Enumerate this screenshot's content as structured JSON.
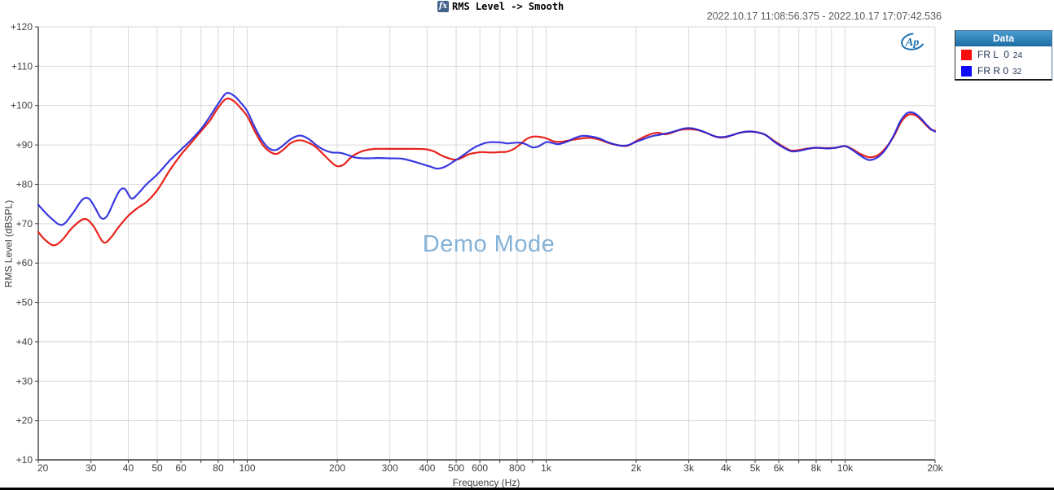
{
  "header": {
    "fx_icon_label": "fx",
    "title": "RMS Level -> Smooth"
  },
  "timestamp": "2022.10.17 11:08:56.375 - 2022.10.17 17:07:42.536",
  "watermark": "Demo Mode",
  "logo": {
    "text": "Ap"
  },
  "legend": {
    "title": "Data",
    "items": [
      {
        "label": "FR L  0",
        "number": "24",
        "color": "#fb0c0c"
      },
      {
        "label": "FR R 0",
        "number": "32",
        "color": "#0c0cfb"
      }
    ]
  },
  "colors": {
    "grid": "#d9d9d9",
    "axis": "#3f3f3f",
    "tick_text": "#3f3f3f",
    "red_trace": "#e8231d",
    "blue_trace": "#2424dd",
    "watermark_blue": "#84b2d8",
    "logo_blue": "#1b6fae",
    "legend_header_blue": "#1b6ca3"
  },
  "chart_data": {
    "type": "line",
    "title": "RMS Level -> Smooth",
    "xlabel": "Frequency (Hz)",
    "ylabel": "RMS Level (dBSPL)",
    "x_scale": "log",
    "x_axis": {
      "label": "Frequency (Hz)",
      "min": 20,
      "max": 20000,
      "gridlines": [
        20,
        30,
        40,
        50,
        60,
        70,
        80,
        90,
        100,
        200,
        300,
        400,
        500,
        600,
        700,
        800,
        900,
        1000,
        2000,
        3000,
        4000,
        5000,
        6000,
        7000,
        8000,
        9000,
        10000,
        20000
      ],
      "ticks": [
        {
          "f": 20,
          "label": "20"
        },
        {
          "f": 30,
          "label": "30"
        },
        {
          "f": 40,
          "label": "40"
        },
        {
          "f": 50,
          "label": "50"
        },
        {
          "f": 60,
          "label": "60"
        },
        {
          "f": 80,
          "label": "80"
        },
        {
          "f": 100,
          "label": "100"
        },
        {
          "f": 200,
          "label": "200"
        },
        {
          "f": 300,
          "label": "300"
        },
        {
          "f": 400,
          "label": "400"
        },
        {
          "f": 500,
          "label": "500"
        },
        {
          "f": 600,
          "label": "600"
        },
        {
          "f": 800,
          "label": "800"
        },
        {
          "f": 1000,
          "label": "1k"
        },
        {
          "f": 2000,
          "label": "2k"
        },
        {
          "f": 3000,
          "label": "3k"
        },
        {
          "f": 4000,
          "label": "4k"
        },
        {
          "f": 5000,
          "label": "5k"
        },
        {
          "f": 6000,
          "label": "6k"
        },
        {
          "f": 8000,
          "label": "8k"
        },
        {
          "f": 10000,
          "label": "10k"
        },
        {
          "f": 20000,
          "label": "20k"
        }
      ]
    },
    "y_axis": {
      "label": "RMS Level (dBSPL)",
      "min": 10,
      "max": 120,
      "step": 10,
      "ticks": [
        {
          "v": 10,
          "label": "+10"
        },
        {
          "v": 20,
          "label": "+20"
        },
        {
          "v": 30,
          "label": "+30"
        },
        {
          "v": 40,
          "label": "+40"
        },
        {
          "v": 50,
          "label": "+50"
        },
        {
          "v": 60,
          "label": "+60"
        },
        {
          "v": 70,
          "label": "+70"
        },
        {
          "v": 80,
          "label": "+80"
        },
        {
          "v": 90,
          "label": "+90"
        },
        {
          "v": 100,
          "label": "+100"
        },
        {
          "v": 110,
          "label": "+110"
        },
        {
          "v": 120,
          "label": "+120"
        }
      ]
    },
    "legend_position": "top-right",
    "grid": true,
    "series": [
      {
        "name": "FR L 0 24",
        "color": "#e8231d",
        "points": [
          [
            20,
            67.9
          ],
          [
            21,
            66.0
          ],
          [
            22.5,
            64.5
          ],
          [
            24,
            65.8
          ],
          [
            26,
            69.0
          ],
          [
            28.5,
            71.2
          ],
          [
            30.5,
            69.5
          ],
          [
            33,
            65.3
          ],
          [
            35,
            66.5
          ],
          [
            37,
            69.0
          ],
          [
            40,
            72.0
          ],
          [
            43,
            74.0
          ],
          [
            46,
            75.5
          ],
          [
            50,
            78.5
          ],
          [
            55,
            83.5
          ],
          [
            60,
            87.5
          ],
          [
            64,
            90.0
          ],
          [
            70,
            93.5
          ],
          [
            75,
            96.2
          ],
          [
            80,
            99.5
          ],
          [
            85,
            101.7
          ],
          [
            90,
            101.2
          ],
          [
            95,
            99.4
          ],
          [
            100,
            97.3
          ],
          [
            106,
            93.5
          ],
          [
            112,
            90.3
          ],
          [
            118,
            88.5
          ],
          [
            125,
            87.7
          ],
          [
            132,
            88.8
          ],
          [
            140,
            90.5
          ],
          [
            150,
            91.2
          ],
          [
            160,
            90.6
          ],
          [
            170,
            89.4
          ],
          [
            182,
            87.2
          ],
          [
            192,
            85.5
          ],
          [
            200,
            84.6
          ],
          [
            210,
            85.0
          ],
          [
            222,
            86.8
          ],
          [
            235,
            88.0
          ],
          [
            250,
            88.7
          ],
          [
            270,
            89.0
          ],
          [
            300,
            89.0
          ],
          [
            330,
            89.0
          ],
          [
            360,
            89.0
          ],
          [
            395,
            88.9
          ],
          [
            420,
            88.4
          ],
          [
            445,
            87.4
          ],
          [
            465,
            86.8
          ],
          [
            490,
            86.3
          ],
          [
            510,
            86.4
          ],
          [
            530,
            87.0
          ],
          [
            555,
            87.7
          ],
          [
            580,
            88.0
          ],
          [
            610,
            88.2
          ],
          [
            640,
            88.1
          ],
          [
            670,
            88.1
          ],
          [
            700,
            88.2
          ],
          [
            740,
            88.3
          ],
          [
            780,
            89.0
          ],
          [
            820,
            90.2
          ],
          [
            860,
            91.5
          ],
          [
            900,
            92.1
          ],
          [
            940,
            92.1
          ],
          [
            1000,
            91.7
          ],
          [
            1060,
            90.9
          ],
          [
            1120,
            90.8
          ],
          [
            1200,
            91.2
          ],
          [
            1300,
            91.6
          ],
          [
            1400,
            91.8
          ],
          [
            1500,
            91.4
          ],
          [
            1620,
            90.5
          ],
          [
            1750,
            89.9
          ],
          [
            1870,
            89.8
          ],
          [
            2000,
            91.0
          ],
          [
            2120,
            92.0
          ],
          [
            2250,
            92.8
          ],
          [
            2370,
            93.1
          ],
          [
            2500,
            92.7
          ],
          [
            2650,
            93.2
          ],
          [
            2800,
            93.8
          ],
          [
            3000,
            94.0
          ],
          [
            3200,
            93.8
          ],
          [
            3400,
            93.2
          ],
          [
            3600,
            92.4
          ],
          [
            3800,
            91.9
          ],
          [
            4000,
            92.0
          ],
          [
            4200,
            92.5
          ],
          [
            4500,
            93.2
          ],
          [
            4800,
            93.4
          ],
          [
            5100,
            93.2
          ],
          [
            5400,
            92.6
          ],
          [
            5800,
            91.0
          ],
          [
            6200,
            89.6
          ],
          [
            6600,
            88.6
          ],
          [
            7000,
            88.7
          ],
          [
            7500,
            89.1
          ],
          [
            8000,
            89.3
          ],
          [
            8700,
            89.2
          ],
          [
            9300,
            89.3
          ],
          [
            10000,
            89.7
          ],
          [
            10600,
            88.9
          ],
          [
            11200,
            87.8
          ],
          [
            12000,
            86.9
          ],
          [
            12800,
            87.3
          ],
          [
            13600,
            89.0
          ],
          [
            14500,
            92.0
          ],
          [
            15300,
            95.5
          ],
          [
            16000,
            97.3
          ],
          [
            16600,
            97.8
          ],
          [
            17300,
            97.4
          ],
          [
            18000,
            96.3
          ],
          [
            18800,
            94.8
          ],
          [
            19400,
            93.9
          ],
          [
            20000,
            93.6
          ]
        ]
      },
      {
        "name": "FR R 0 32",
        "color": "#2424dd",
        "points": [
          [
            20,
            74.8
          ],
          [
            22,
            71.5
          ],
          [
            24,
            69.7
          ],
          [
            26,
            72.5
          ],
          [
            28,
            76.0
          ],
          [
            29.5,
            76.4
          ],
          [
            31,
            74.0
          ],
          [
            32.5,
            71.4
          ],
          [
            34,
            72.0
          ],
          [
            36,
            76.0
          ],
          [
            37.5,
            78.5
          ],
          [
            39,
            78.8
          ],
          [
            41,
            76.4
          ],
          [
            43,
            77.5
          ],
          [
            46,
            80.0
          ],
          [
            50,
            82.5
          ],
          [
            55,
            86.0
          ],
          [
            60,
            88.8
          ],
          [
            64,
            90.8
          ],
          [
            70,
            94.0
          ],
          [
            75,
            97.2
          ],
          [
            80,
            100.5
          ],
          [
            85,
            103.1
          ],
          [
            90,
            102.6
          ],
          [
            95,
            100.8
          ],
          [
            100,
            98.6
          ],
          [
            106,
            94.5
          ],
          [
            112,
            91.2
          ],
          [
            118,
            89.2
          ],
          [
            124,
            88.7
          ],
          [
            130,
            89.5
          ],
          [
            140,
            91.5
          ],
          [
            150,
            92.4
          ],
          [
            160,
            91.6
          ],
          [
            170,
            90.0
          ],
          [
            180,
            88.8
          ],
          [
            192,
            88.1
          ],
          [
            205,
            88.0
          ],
          [
            218,
            87.4
          ],
          [
            230,
            86.8
          ],
          [
            250,
            86.6
          ],
          [
            275,
            86.7
          ],
          [
            300,
            86.6
          ],
          [
            330,
            86.5
          ],
          [
            360,
            85.8
          ],
          [
            390,
            85.0
          ],
          [
            410,
            84.5
          ],
          [
            430,
            84.0
          ],
          [
            450,
            84.2
          ],
          [
            470,
            84.9
          ],
          [
            490,
            85.8
          ],
          [
            510,
            86.6
          ],
          [
            530,
            87.5
          ],
          [
            555,
            88.6
          ],
          [
            580,
            89.5
          ],
          [
            600,
            90.0
          ],
          [
            625,
            90.5
          ],
          [
            650,
            90.7
          ],
          [
            680,
            90.7
          ],
          [
            710,
            90.6
          ],
          [
            740,
            90.4
          ],
          [
            770,
            90.5
          ],
          [
            800,
            90.6
          ],
          [
            830,
            90.5
          ],
          [
            860,
            90.1
          ],
          [
            900,
            89.4
          ],
          [
            940,
            89.6
          ],
          [
            1000,
            90.7
          ],
          [
            1050,
            90.5
          ],
          [
            1100,
            90.2
          ],
          [
            1180,
            90.9
          ],
          [
            1250,
            91.8
          ],
          [
            1320,
            92.3
          ],
          [
            1400,
            92.2
          ],
          [
            1500,
            91.7
          ],
          [
            1620,
            90.6
          ],
          [
            1750,
            89.9
          ],
          [
            1870,
            89.9
          ],
          [
            2000,
            90.8
          ],
          [
            2120,
            91.5
          ],
          [
            2250,
            92.2
          ],
          [
            2400,
            92.6
          ],
          [
            2550,
            93.0
          ],
          [
            2700,
            93.5
          ],
          [
            2900,
            94.2
          ],
          [
            3100,
            94.2
          ],
          [
            3300,
            93.6
          ],
          [
            3500,
            92.8
          ],
          [
            3700,
            92.1
          ],
          [
            3900,
            92.0
          ],
          [
            4100,
            92.3
          ],
          [
            4400,
            93.0
          ],
          [
            4700,
            93.4
          ],
          [
            5000,
            93.3
          ],
          [
            5400,
            92.6
          ],
          [
            5800,
            90.8
          ],
          [
            6200,
            89.4
          ],
          [
            6600,
            88.4
          ],
          [
            7000,
            88.5
          ],
          [
            7500,
            89.0
          ],
          [
            8000,
            89.3
          ],
          [
            8700,
            89.1
          ],
          [
            9300,
            89.3
          ],
          [
            10000,
            89.7
          ],
          [
            10600,
            88.7
          ],
          [
            11200,
            87.4
          ],
          [
            12000,
            86.2
          ],
          [
            12800,
            86.8
          ],
          [
            13600,
            88.7
          ],
          [
            14500,
            92.2
          ],
          [
            15300,
            96.0
          ],
          [
            16000,
            97.9
          ],
          [
            16600,
            98.3
          ],
          [
            17300,
            97.8
          ],
          [
            18000,
            96.6
          ],
          [
            18800,
            95.0
          ],
          [
            19400,
            94.0
          ],
          [
            20000,
            93.4
          ]
        ]
      }
    ]
  }
}
